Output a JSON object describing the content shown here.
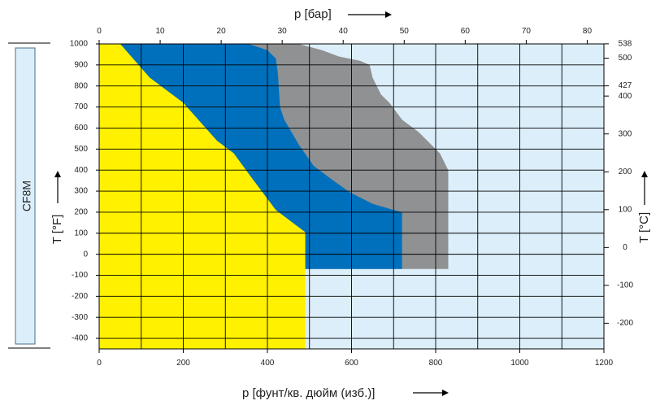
{
  "chart_data": {
    "type": "area",
    "material": "CF8M",
    "xlabel": "p [фунт/кв. дюйм (изб.)]",
    "x2label": "p [бар]",
    "ylabel": "T [°F]",
    "y2label": "T [°C]",
    "xlim": [
      0,
      1200
    ],
    "ylim": [
      -450,
      1000
    ],
    "x_ticks": [
      "0",
      "200",
      "400",
      "600",
      "800",
      "1000",
      "1200"
    ],
    "x2_ticks": [
      {
        "value": 0,
        "label": "0"
      },
      {
        "value": 10,
        "label": "10"
      },
      {
        "value": 20,
        "label": "20"
      },
      {
        "value": 30,
        "label": "30"
      },
      {
        "value": 40,
        "label": "40"
      },
      {
        "value": 50,
        "label": "50"
      },
      {
        "value": 60,
        "label": "60"
      },
      {
        "value": 70,
        "label": "70"
      },
      {
        "value": 80,
        "label": "80"
      }
    ],
    "y_ticks": [
      "1000",
      "900",
      "800",
      "700",
      "600",
      "500",
      "400",
      "300",
      "200",
      "100",
      "0",
      "-100",
      "-200",
      "-300",
      "-400"
    ],
    "y2_ticks": [
      {
        "value": 538,
        "label": "538"
      },
      {
        "value": 500,
        "label": "500"
      },
      {
        "value": 427,
        "label": "427"
      },
      {
        "value": 400,
        "label": "400"
      },
      {
        "value": 300,
        "label": "300"
      },
      {
        "value": 200,
        "label": "200"
      },
      {
        "value": 100,
        "label": "100"
      },
      {
        "value": 0,
        "label": "0"
      },
      {
        "value": -100,
        "label": "-100"
      },
      {
        "value": -200,
        "label": "-200"
      }
    ],
    "grid": true,
    "background_color": "#dceefa",
    "series": [
      {
        "color": "#8f9193",
        "points": [
          [
            0,
            1000
          ],
          [
            474,
            1000
          ],
          [
            530,
            970
          ],
          [
            570,
            940
          ],
          [
            620,
            920
          ],
          [
            643,
            900
          ],
          [
            650,
            840
          ],
          [
            670,
            760
          ],
          [
            690,
            720
          ],
          [
            720,
            640
          ],
          [
            760,
            580
          ],
          [
            790,
            520
          ],
          [
            810,
            480
          ],
          [
            830,
            400
          ],
          [
            830,
            -70
          ],
          [
            450,
            -70
          ],
          [
            450,
            -450
          ],
          [
            0,
            -450
          ]
        ]
      },
      {
        "color": "#0070bc",
        "points": [
          [
            0,
            1000
          ],
          [
            355,
            1000
          ],
          [
            400,
            970
          ],
          [
            420,
            930
          ],
          [
            425,
            860
          ],
          [
            430,
            700
          ],
          [
            440,
            640
          ],
          [
            475,
            520
          ],
          [
            510,
            420
          ],
          [
            550,
            360
          ],
          [
            595,
            295
          ],
          [
            650,
            240
          ],
          [
            700,
            210
          ],
          [
            720,
            200
          ],
          [
            720,
            -70
          ],
          [
            450,
            -70
          ],
          [
            450,
            -450
          ],
          [
            0,
            -450
          ]
        ]
      },
      {
        "color": "#fff100",
        "points": [
          [
            0,
            1000
          ],
          [
            50,
            1000
          ],
          [
            120,
            840
          ],
          [
            200,
            720
          ],
          [
            280,
            540
          ],
          [
            320,
            480
          ],
          [
            360,
            370
          ],
          [
            420,
            210
          ],
          [
            490,
            105
          ],
          [
            490,
            -450
          ],
          [
            0,
            -450
          ]
        ]
      }
    ]
  }
}
